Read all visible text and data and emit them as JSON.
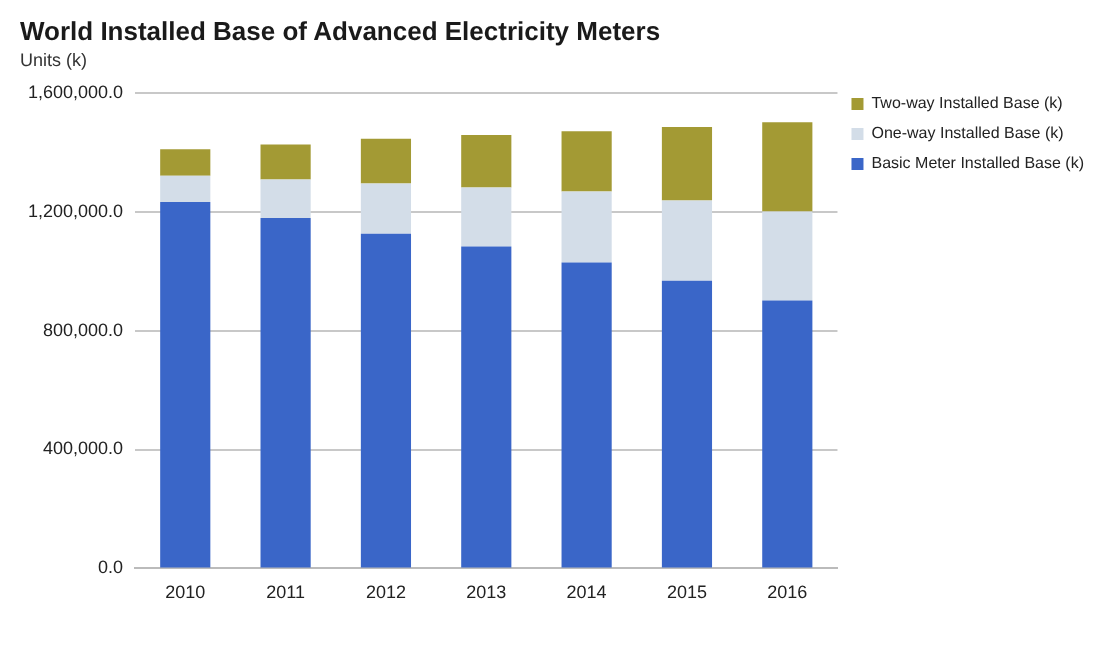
{
  "chart_data": {
    "type": "bar",
    "title": "World Installed Base of Advanced Electricity Meters",
    "ylabel": "Units (k)",
    "categories": [
      "2010",
      "2011",
      "2012",
      "2013",
      "2014",
      "2015",
      "2016"
    ],
    "stacked": true,
    "series": [
      {
        "name": "Basic Meter Installed Base (k)",
        "color": "#3a66c8",
        "values": [
          1233000,
          1179000,
          1126000,
          1083000,
          1029000,
          968000,
          901000
        ]
      },
      {
        "name": "One-way Installed Base (k)",
        "color": "#d3dde8",
        "values": [
          88000,
          129000,
          169000,
          198000,
          239000,
          270000,
          300000
        ]
      },
      {
        "name": "Two-way Installed Base (k)",
        "color": "#a39a34",
        "values": [
          89000,
          118000,
          150000,
          177000,
          203000,
          247000,
          300000
        ]
      }
    ],
    "ylim": [
      0,
      1600000
    ],
    "yticks": [
      {
        "value": 0,
        "label": "0.0"
      },
      {
        "value": 400000,
        "label": "400,000.0"
      },
      {
        "value": 800000,
        "label": "800,000.0"
      },
      {
        "value": 1200000,
        "label": "1,200,000.0"
      },
      {
        "value": 1600000,
        "label": "1,600,000.0"
      }
    ],
    "grid": "y",
    "legend": "right"
  }
}
